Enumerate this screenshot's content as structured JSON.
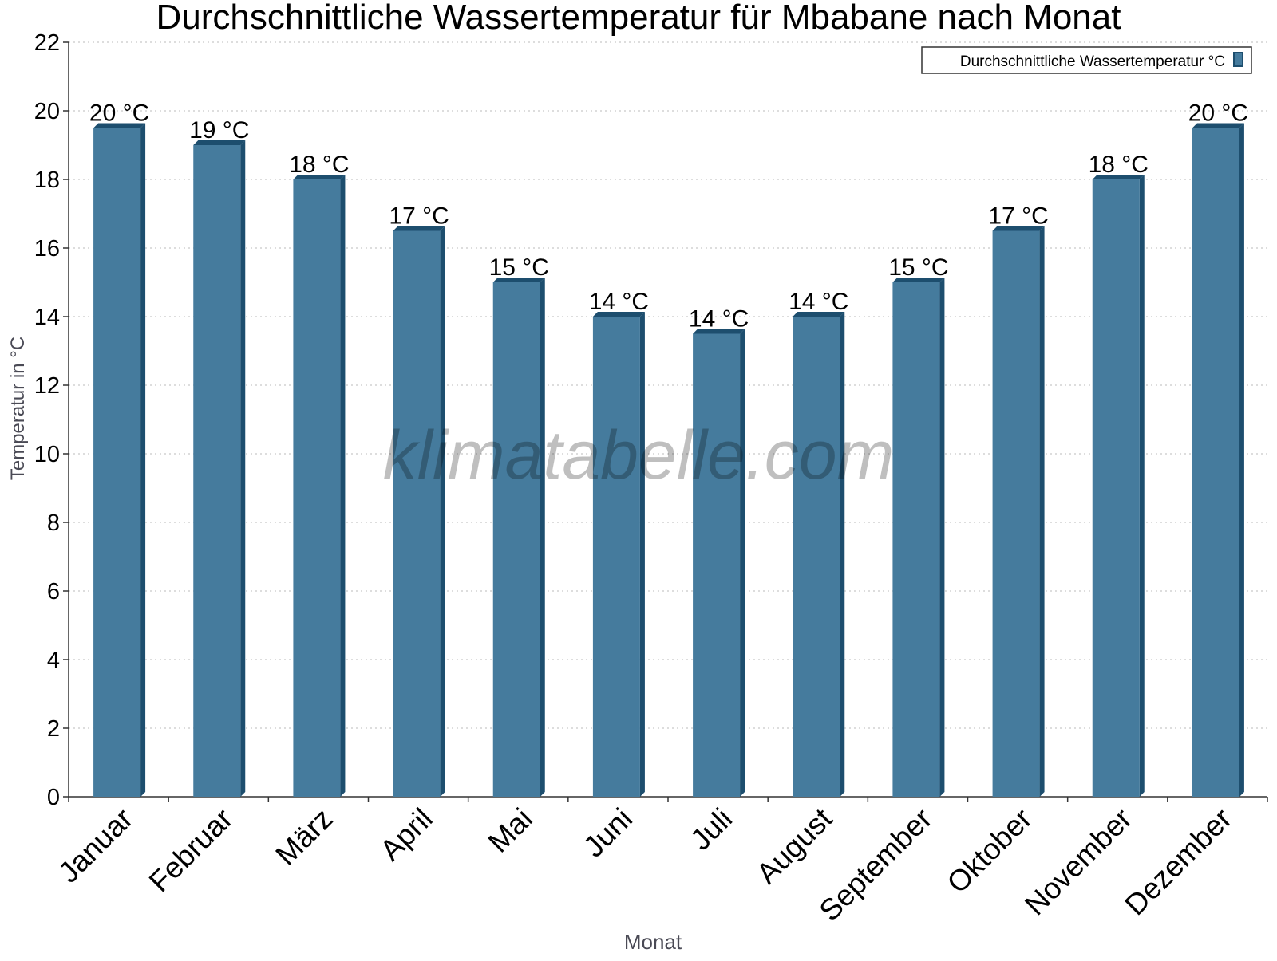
{
  "chart_data": {
    "type": "bar",
    "title": "Durchschnittliche Wassertemperatur für Mbabane nach Monat",
    "xlabel": "Monat",
    "ylabel": "Temperatur in °C",
    "categories": [
      "Januar",
      "Februar",
      "März",
      "April",
      "Mai",
      "Juni",
      "Juli",
      "August",
      "September",
      "Oktober",
      "November",
      "Dezember"
    ],
    "series": [
      {
        "name": "Durchschnittliche Wassertemperatur °C",
        "values": [
          19.5,
          19.0,
          18.0,
          16.5,
          15.0,
          14.0,
          13.5,
          14.0,
          15.0,
          16.5,
          18.0,
          19.5
        ],
        "data_labels": [
          "20 °C",
          "19 °C",
          "18 °C",
          "17 °C",
          "15 °C",
          "14 °C",
          "14 °C",
          "14 °C",
          "15 °C",
          "17 °C",
          "18 °C",
          "20 °C"
        ],
        "color": "#457b9d"
      }
    ],
    "ylim": [
      0,
      22
    ],
    "yticks": [
      0,
      2,
      4,
      6,
      8,
      10,
      12,
      14,
      16,
      18,
      20,
      22
    ],
    "grid": true,
    "legend_position": "top-right"
  },
  "watermark": "klimatabelle.com",
  "colors": {
    "bar_front": "#457b9d",
    "bar_side": "#1d4e6e",
    "bar_top": "#1d4e6e",
    "grid": "#bbbbbb",
    "axis": "#333333",
    "axis_title": "#4a4a55"
  }
}
